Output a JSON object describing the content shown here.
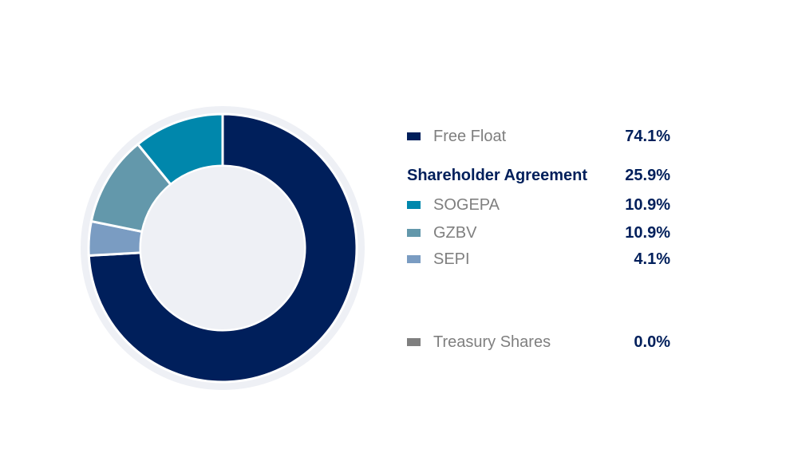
{
  "chart_data": {
    "type": "pie",
    "slices": [
      {
        "name": "Free Float",
        "value": 74.1,
        "color": "#001f5b"
      },
      {
        "name": "SEPI",
        "value": 4.1,
        "color": "#7a9cc2"
      },
      {
        "name": "GZBV",
        "value": 10.9,
        "color": "#6398ab"
      },
      {
        "name": "SOGEPA",
        "value": 10.9,
        "color": "#0087ac"
      },
      {
        "name": "Treasury Shares",
        "value": 0.0,
        "color": "#7f7f7f"
      }
    ],
    "center_color": "#eef0f5",
    "ring_color": "#eef0f5"
  },
  "legend": {
    "free_float": {
      "label": "Free Float",
      "value": "74.1%",
      "color": "#001f5b"
    },
    "shareholder_agreement": {
      "label": "Shareholder Agreement",
      "value": "25.9%"
    },
    "sogepa": {
      "label": "SOGEPA",
      "value": "10.9%",
      "color": "#0087ac"
    },
    "gzbv": {
      "label": "GZBV",
      "value": "10.9%",
      "color": "#6398ab"
    },
    "sepi": {
      "label": "SEPI",
      "value": "4.1%",
      "color": "#7a9cc2"
    },
    "treasury": {
      "label": "Treasury Shares",
      "value": "0.0%",
      "color": "#7f7f7f"
    }
  }
}
